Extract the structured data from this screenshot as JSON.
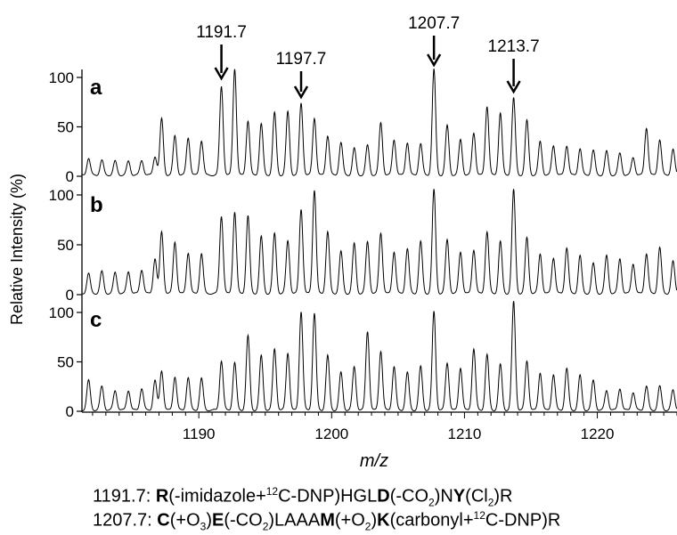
{
  "chart_data": {
    "type": "line",
    "xlabel": "m/z",
    "ylabel": "Relative Intensity (%)",
    "xlim": [
      1181.2,
      1226.0
    ],
    "ylim": [
      0,
      100
    ],
    "x_ticks": [
      1190,
      1200,
      1210,
      1220
    ],
    "y_ticks": [
      0,
      50,
      100
    ],
    "grid": false,
    "legend": "none",
    "panels": [
      {
        "label": "a",
        "peaks": [
          {
            "x": 1181.7,
            "y": 17
          },
          {
            "x": 1182.7,
            "y": 15
          },
          {
            "x": 1183.7,
            "y": 14
          },
          {
            "x": 1184.7,
            "y": 14
          },
          {
            "x": 1185.7,
            "y": 15
          },
          {
            "x": 1186.7,
            "y": 19
          },
          {
            "x": 1187.2,
            "y": 57
          },
          {
            "x": 1188.2,
            "y": 40
          },
          {
            "x": 1189.2,
            "y": 38
          },
          {
            "x": 1190.2,
            "y": 35
          },
          {
            "x": 1191.7,
            "y": 90
          },
          {
            "x": 1192.7,
            "y": 108
          },
          {
            "x": 1193.7,
            "y": 55
          },
          {
            "x": 1194.7,
            "y": 52
          },
          {
            "x": 1195.7,
            "y": 63
          },
          {
            "x": 1196.7,
            "y": 64
          },
          {
            "x": 1197.7,
            "y": 73
          },
          {
            "x": 1198.7,
            "y": 58
          },
          {
            "x": 1199.7,
            "y": 40
          },
          {
            "x": 1200.7,
            "y": 33
          },
          {
            "x": 1201.7,
            "y": 27
          },
          {
            "x": 1202.7,
            "y": 30
          },
          {
            "x": 1203.7,
            "y": 53
          },
          {
            "x": 1204.7,
            "y": 36
          },
          {
            "x": 1205.7,
            "y": 33
          },
          {
            "x": 1206.7,
            "y": 32
          },
          {
            "x": 1207.7,
            "y": 107
          },
          {
            "x": 1208.7,
            "y": 50
          },
          {
            "x": 1209.7,
            "y": 36
          },
          {
            "x": 1210.7,
            "y": 43
          },
          {
            "x": 1211.7,
            "y": 70
          },
          {
            "x": 1212.7,
            "y": 63
          },
          {
            "x": 1213.7,
            "y": 78
          },
          {
            "x": 1214.7,
            "y": 55
          },
          {
            "x": 1215.7,
            "y": 34
          },
          {
            "x": 1216.7,
            "y": 30
          },
          {
            "x": 1217.7,
            "y": 30
          },
          {
            "x": 1218.7,
            "y": 27
          },
          {
            "x": 1219.7,
            "y": 25
          },
          {
            "x": 1220.7,
            "y": 24
          },
          {
            "x": 1221.7,
            "y": 22
          },
          {
            "x": 1222.7,
            "y": 18
          },
          {
            "x": 1223.7,
            "y": 48
          },
          {
            "x": 1224.7,
            "y": 36
          },
          {
            "x": 1225.7,
            "y": 26
          }
        ]
      },
      {
        "label": "b",
        "peaks": [
          {
            "x": 1181.7,
            "y": 20
          },
          {
            "x": 1182.7,
            "y": 22
          },
          {
            "x": 1183.7,
            "y": 21
          },
          {
            "x": 1184.7,
            "y": 22
          },
          {
            "x": 1185.7,
            "y": 24
          },
          {
            "x": 1186.7,
            "y": 35
          },
          {
            "x": 1187.2,
            "y": 62
          },
          {
            "x": 1188.2,
            "y": 52
          },
          {
            "x": 1189.2,
            "y": 41
          },
          {
            "x": 1190.2,
            "y": 40
          },
          {
            "x": 1191.7,
            "y": 78
          },
          {
            "x": 1192.7,
            "y": 82
          },
          {
            "x": 1193.7,
            "y": 78
          },
          {
            "x": 1194.7,
            "y": 57
          },
          {
            "x": 1195.7,
            "y": 60
          },
          {
            "x": 1196.7,
            "y": 53
          },
          {
            "x": 1197.7,
            "y": 85
          },
          {
            "x": 1198.7,
            "y": 104
          },
          {
            "x": 1199.7,
            "y": 62
          },
          {
            "x": 1200.7,
            "y": 42
          },
          {
            "x": 1201.7,
            "y": 50
          },
          {
            "x": 1202.7,
            "y": 52
          },
          {
            "x": 1203.7,
            "y": 61
          },
          {
            "x": 1204.7,
            "y": 42
          },
          {
            "x": 1205.7,
            "y": 45
          },
          {
            "x": 1206.7,
            "y": 52
          },
          {
            "x": 1207.7,
            "y": 104
          },
          {
            "x": 1208.7,
            "y": 54
          },
          {
            "x": 1209.7,
            "y": 42
          },
          {
            "x": 1210.7,
            "y": 44
          },
          {
            "x": 1211.7,
            "y": 62
          },
          {
            "x": 1212.7,
            "y": 52
          },
          {
            "x": 1213.7,
            "y": 104
          },
          {
            "x": 1214.7,
            "y": 56
          },
          {
            "x": 1215.7,
            "y": 40
          },
          {
            "x": 1216.7,
            "y": 36
          },
          {
            "x": 1217.7,
            "y": 46
          },
          {
            "x": 1218.7,
            "y": 38
          },
          {
            "x": 1219.7,
            "y": 30
          },
          {
            "x": 1220.7,
            "y": 38
          },
          {
            "x": 1221.7,
            "y": 35
          },
          {
            "x": 1222.7,
            "y": 30
          },
          {
            "x": 1223.7,
            "y": 40
          },
          {
            "x": 1224.7,
            "y": 46
          },
          {
            "x": 1225.7,
            "y": 32
          }
        ]
      },
      {
        "label": "c",
        "peaks": [
          {
            "x": 1181.7,
            "y": 30
          },
          {
            "x": 1182.7,
            "y": 24
          },
          {
            "x": 1183.7,
            "y": 20
          },
          {
            "x": 1184.7,
            "y": 20
          },
          {
            "x": 1185.7,
            "y": 22
          },
          {
            "x": 1186.7,
            "y": 30
          },
          {
            "x": 1187.2,
            "y": 40
          },
          {
            "x": 1188.2,
            "y": 34
          },
          {
            "x": 1189.2,
            "y": 33
          },
          {
            "x": 1190.2,
            "y": 32
          },
          {
            "x": 1191.7,
            "y": 50
          },
          {
            "x": 1192.7,
            "y": 48
          },
          {
            "x": 1193.7,
            "y": 75
          },
          {
            "x": 1194.7,
            "y": 55
          },
          {
            "x": 1195.7,
            "y": 62
          },
          {
            "x": 1196.7,
            "y": 58
          },
          {
            "x": 1197.7,
            "y": 100
          },
          {
            "x": 1198.7,
            "y": 98
          },
          {
            "x": 1199.7,
            "y": 55
          },
          {
            "x": 1200.7,
            "y": 38
          },
          {
            "x": 1201.7,
            "y": 44
          },
          {
            "x": 1202.7,
            "y": 80
          },
          {
            "x": 1203.7,
            "y": 60
          },
          {
            "x": 1204.7,
            "y": 44
          },
          {
            "x": 1205.7,
            "y": 38
          },
          {
            "x": 1206.7,
            "y": 44
          },
          {
            "x": 1207.7,
            "y": 100
          },
          {
            "x": 1208.7,
            "y": 48
          },
          {
            "x": 1209.7,
            "y": 43
          },
          {
            "x": 1210.7,
            "y": 62
          },
          {
            "x": 1211.7,
            "y": 56
          },
          {
            "x": 1212.7,
            "y": 46
          },
          {
            "x": 1213.7,
            "y": 110
          },
          {
            "x": 1214.7,
            "y": 50
          },
          {
            "x": 1215.7,
            "y": 38
          },
          {
            "x": 1216.7,
            "y": 36
          },
          {
            "x": 1217.7,
            "y": 42
          },
          {
            "x": 1218.7,
            "y": 35
          },
          {
            "x": 1219.7,
            "y": 30
          },
          {
            "x": 1220.7,
            "y": 20
          },
          {
            "x": 1221.7,
            "y": 22
          },
          {
            "x": 1222.7,
            "y": 18
          },
          {
            "x": 1223.7,
            "y": 24
          },
          {
            "x": 1224.7,
            "y": 24
          },
          {
            "x": 1225.7,
            "y": 20
          }
        ]
      }
    ],
    "annotations": [
      {
        "text": "1191.7",
        "x": 1191.7,
        "panel": "a"
      },
      {
        "text": "1197.7",
        "x": 1197.7,
        "panel": "a"
      },
      {
        "text": "1207.7",
        "x": 1207.7,
        "panel": "a"
      },
      {
        "text": "1213.7",
        "x": 1213.7,
        "panel": "a"
      }
    ]
  },
  "captions": {
    "line1": {
      "mass": "1191.7:",
      "res1": "R",
      "mod1": "(-imidazole+",
      "iso": "12",
      "mod1b": "C-DNP)HGL",
      "res2": "D",
      "mod2": "(-CO",
      "sub2": "2",
      "mod2b": ")N",
      "res3": "Y",
      "mod3": "(Cl",
      "sub3": "2",
      "mod3b": ")R"
    },
    "line2": {
      "mass": "1207.7:",
      "res1": "C",
      "mod1": "(+O",
      "sub1": "3",
      "mod1b": ")",
      "res2": "E",
      "mod2": "(-CO",
      "sub2": "2",
      "mod2b": ")LAAA",
      "res3": "M",
      "mod3": "(+O",
      "sub3": "2",
      "mod3b": ")",
      "res4": "K",
      "mod4": "(carbonyl+",
      "iso": "12",
      "mod4b": "C-DNP)R"
    }
  }
}
